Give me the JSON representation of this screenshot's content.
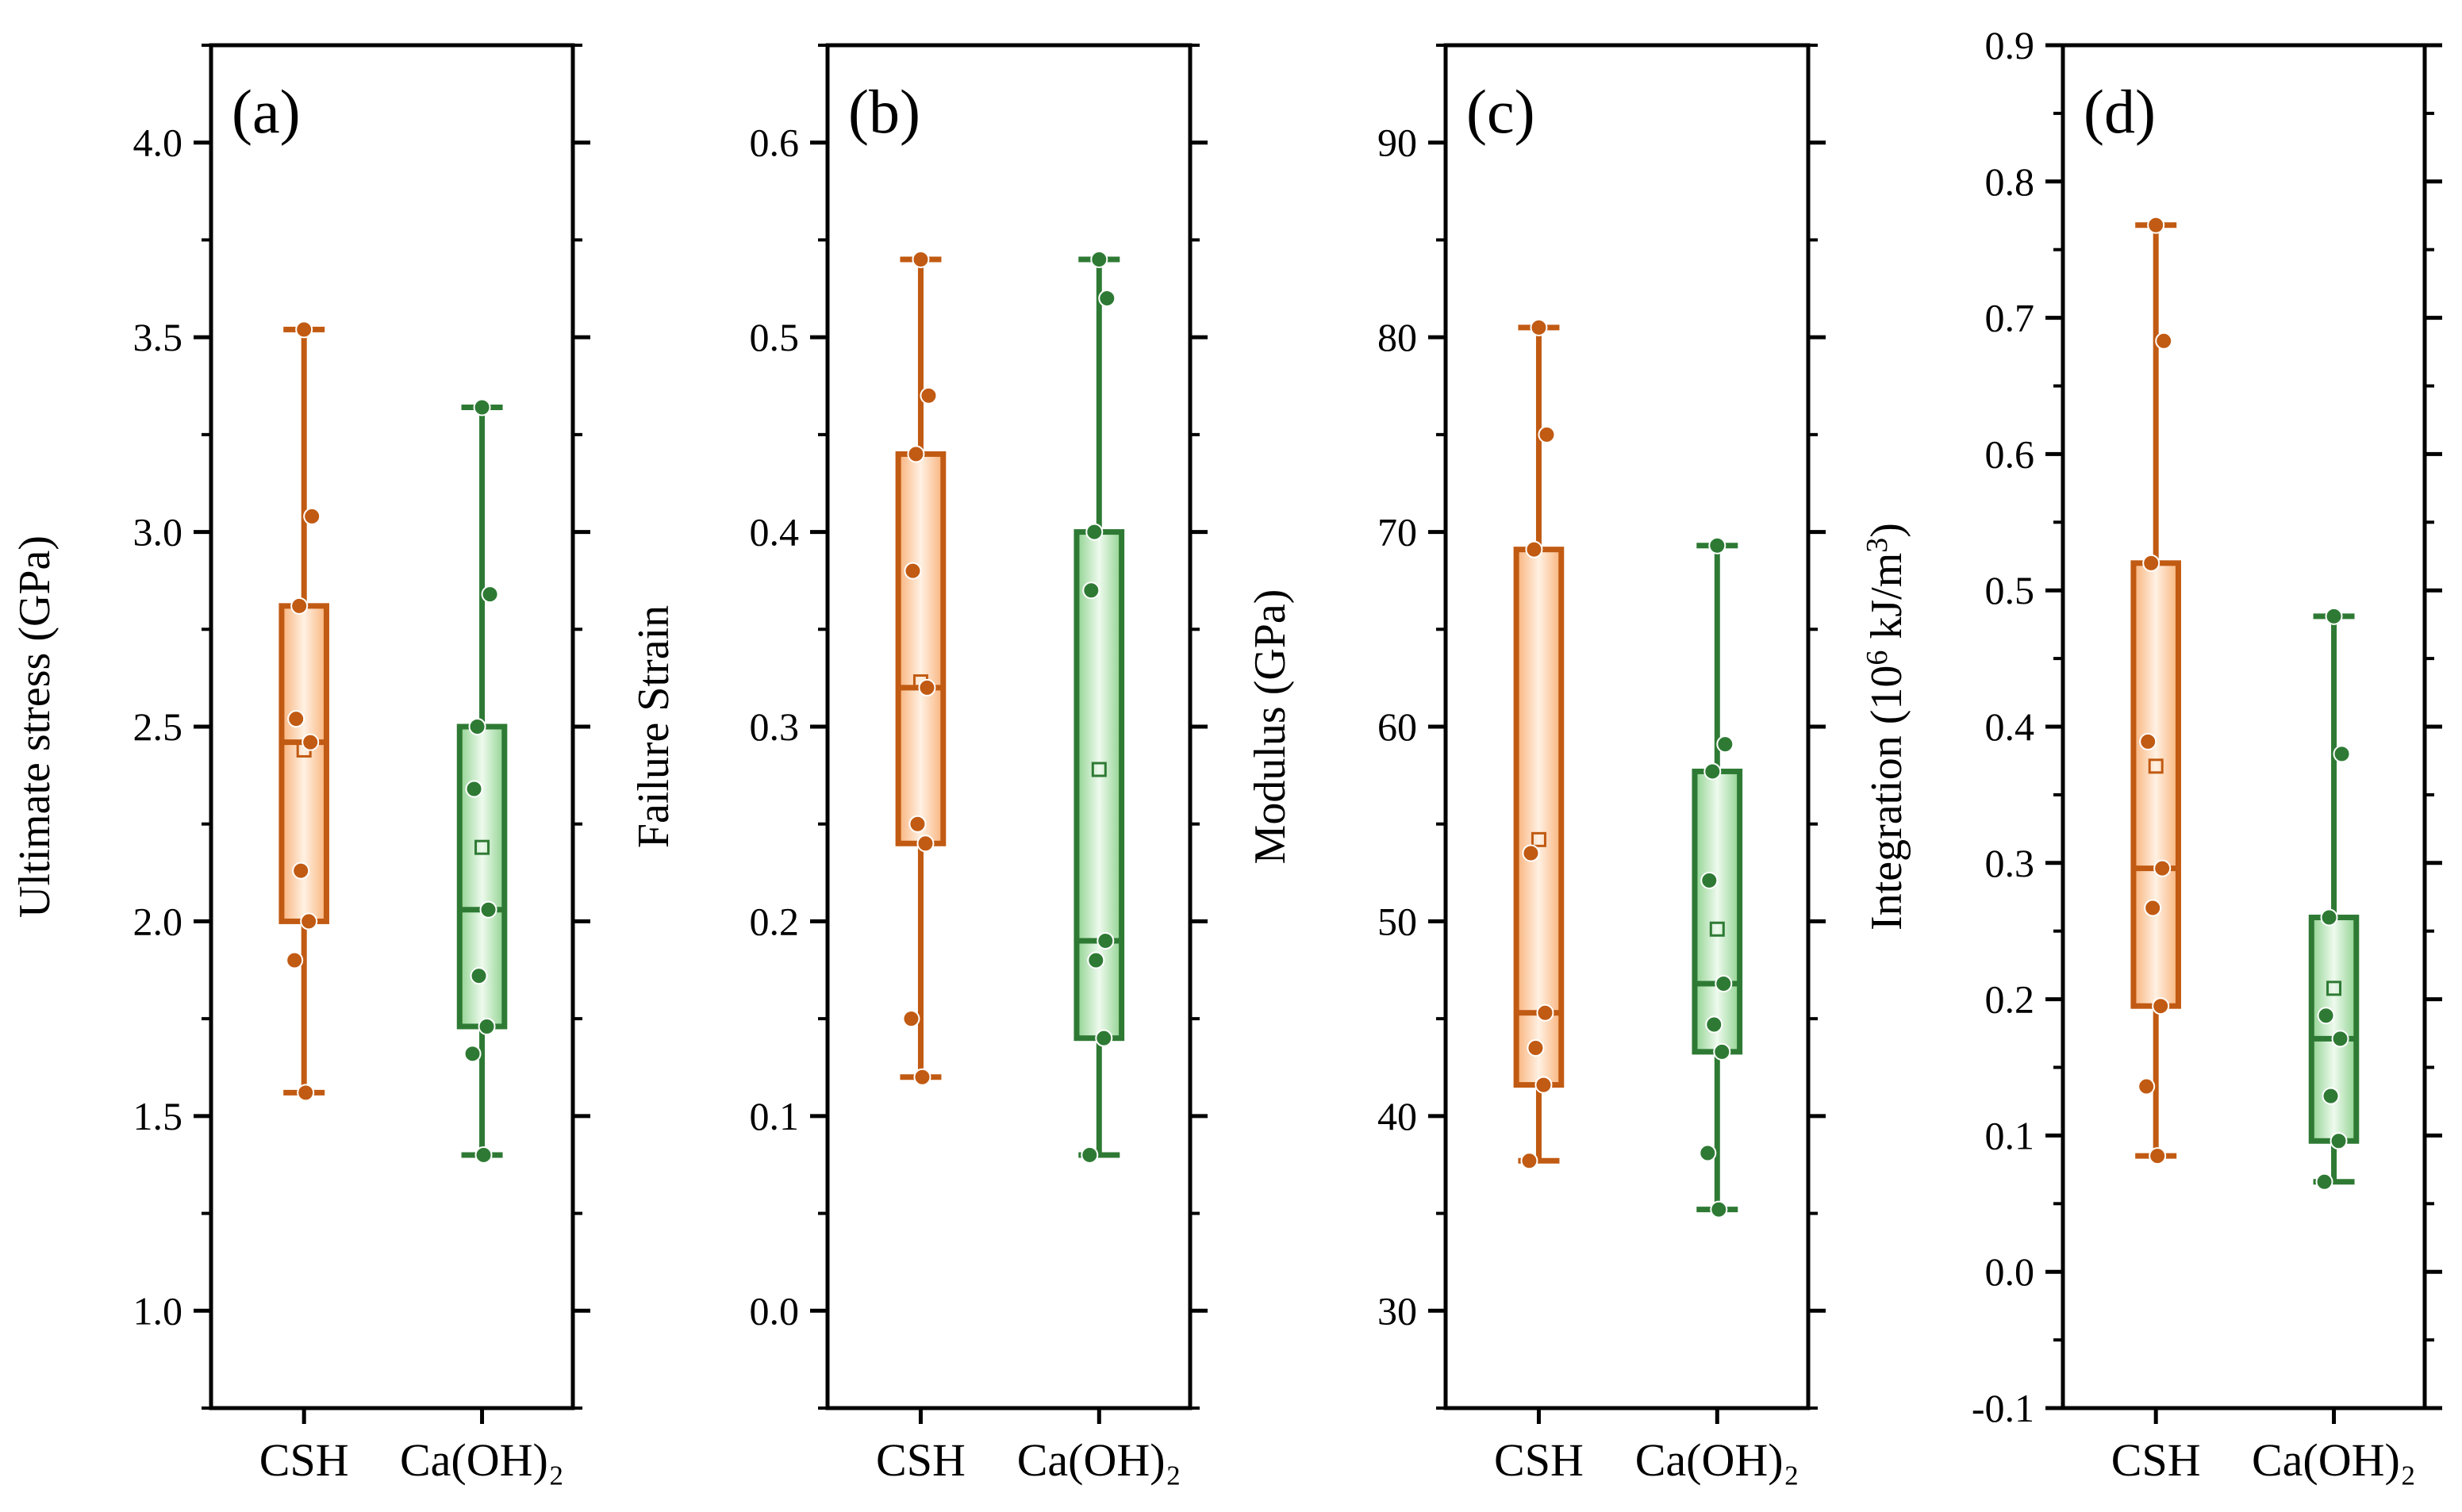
{
  "colors": {
    "csh_stroke": "#c15a12",
    "csh_fill_edge": "#f9b27a",
    "csh_fill_center": "#fff1e3",
    "caoh_stroke": "#2e7a34",
    "caoh_fill_edge": "#8fd28f",
    "caoh_fill_center": "#eefaee"
  },
  "chart_data": [
    {
      "type": "box",
      "panel_label": "(a)",
      "ylabel": "Ultimate stress (GPa)",
      "ylim": [
        0.75,
        4.25
      ],
      "yticks": [
        1.0,
        1.5,
        2.0,
        2.5,
        3.0,
        3.5,
        4.0
      ],
      "ytick_labels": [
        "1.0",
        "1.5",
        "2.0",
        "2.5",
        "3.0",
        "3.5",
        "4.0"
      ],
      "categories": [
        "CSH",
        "Ca(OH)₂"
      ],
      "series": [
        {
          "name": "CSH",
          "q1": 2.0,
          "median": 2.46,
          "q3": 2.81,
          "whisker_low": 1.56,
          "whisker_high": 3.52,
          "mean": 2.44,
          "points": [
            3.52,
            3.04,
            2.81,
            2.52,
            2.46,
            2.13,
            2.0,
            1.9,
            1.56
          ]
        },
        {
          "name": "Ca(OH)₂",
          "q1": 1.73,
          "median": 2.03,
          "q3": 2.5,
          "whisker_low": 1.4,
          "whisker_high": 3.32,
          "mean": 2.19,
          "points": [
            3.32,
            2.84,
            2.5,
            2.34,
            2.03,
            1.86,
            1.73,
            1.66,
            1.4
          ]
        }
      ]
    },
    {
      "type": "box",
      "panel_label": "(b)",
      "ylabel": "Failure Strain",
      "ylim": [
        -0.05,
        0.65
      ],
      "yticks": [
        0.0,
        0.1,
        0.2,
        0.3,
        0.4,
        0.5,
        0.6
      ],
      "ytick_labels": [
        "0.0",
        "0.1",
        "0.2",
        "0.3",
        "0.4",
        "0.5",
        "0.6"
      ],
      "categories": [
        "CSH",
        "Ca(OH)₂"
      ],
      "series": [
        {
          "name": "CSH",
          "q1": 0.24,
          "median": 0.32,
          "q3": 0.44,
          "whisker_low": 0.12,
          "whisker_high": 0.54,
          "mean": 0.323,
          "points": [
            0.54,
            0.47,
            0.44,
            0.38,
            0.32,
            0.25,
            0.24,
            0.15,
            0.12
          ]
        },
        {
          "name": "Ca(OH)₂",
          "q1": 0.14,
          "median": 0.19,
          "q3": 0.4,
          "whisker_low": 0.08,
          "whisker_high": 0.54,
          "mean": 0.278,
          "points": [
            0.54,
            0.52,
            0.4,
            0.37,
            0.19,
            0.18,
            0.14,
            0.08
          ]
        }
      ]
    },
    {
      "type": "box",
      "panel_label": "(c)",
      "ylabel": "Modulus (GPa)",
      "ylim": [
        25,
        95
      ],
      "yticks": [
        30,
        40,
        50,
        60,
        70,
        80,
        90
      ],
      "ytick_labels": [
        "30",
        "40",
        "50",
        "60",
        "70",
        "80",
        "90"
      ],
      "categories": [
        "CSH",
        "Ca(OH)₂"
      ],
      "series": [
        {
          "name": "CSH",
          "q1": 41.6,
          "median": 45.3,
          "q3": 69.1,
          "whisker_low": 37.7,
          "whisker_high": 80.5,
          "mean": 54.2,
          "points": [
            80.5,
            75.0,
            69.1,
            53.5,
            45.3,
            43.5,
            41.6,
            37.7
          ]
        },
        {
          "name": "Ca(OH)₂",
          "q1": 43.3,
          "median": 46.8,
          "q3": 57.7,
          "whisker_low": 35.2,
          "whisker_high": 69.3,
          "mean": 49.6,
          "points": [
            69.3,
            59.1,
            57.7,
            52.1,
            46.8,
            44.7,
            43.3,
            38.1,
            35.2
          ]
        }
      ]
    },
    {
      "type": "box",
      "panel_label": "(d)",
      "ylabel": "Integration (10⁶ kJ/m³)",
      "ylim": [
        -0.1,
        0.9
      ],
      "yticks": [
        -0.1,
        0.0,
        0.1,
        0.2,
        0.3,
        0.4,
        0.5,
        0.6,
        0.7,
        0.8,
        0.9
      ],
      "ytick_labels": [
        "-0.1",
        "0.0",
        "0.1",
        "0.2",
        "0.3",
        "0.4",
        "0.5",
        "0.6",
        "0.7",
        "0.8",
        "0.9"
      ],
      "categories": [
        "CSH",
        "Ca(OH)₂"
      ],
      "series": [
        {
          "name": "CSH",
          "q1": 0.195,
          "median": 0.296,
          "q3": 0.52,
          "whisker_low": 0.085,
          "whisker_high": 0.768,
          "mean": 0.371,
          "points": [
            0.768,
            0.683,
            0.52,
            0.389,
            0.296,
            0.267,
            0.195,
            0.136,
            0.085
          ]
        },
        {
          "name": "Ca(OH)₂",
          "q1": 0.096,
          "median": 0.171,
          "q3": 0.26,
          "whisker_low": 0.066,
          "whisker_high": 0.481,
          "mean": 0.208,
          "points": [
            0.481,
            0.38,
            0.26,
            0.188,
            0.171,
            0.129,
            0.096,
            0.066
          ]
        }
      ]
    }
  ]
}
